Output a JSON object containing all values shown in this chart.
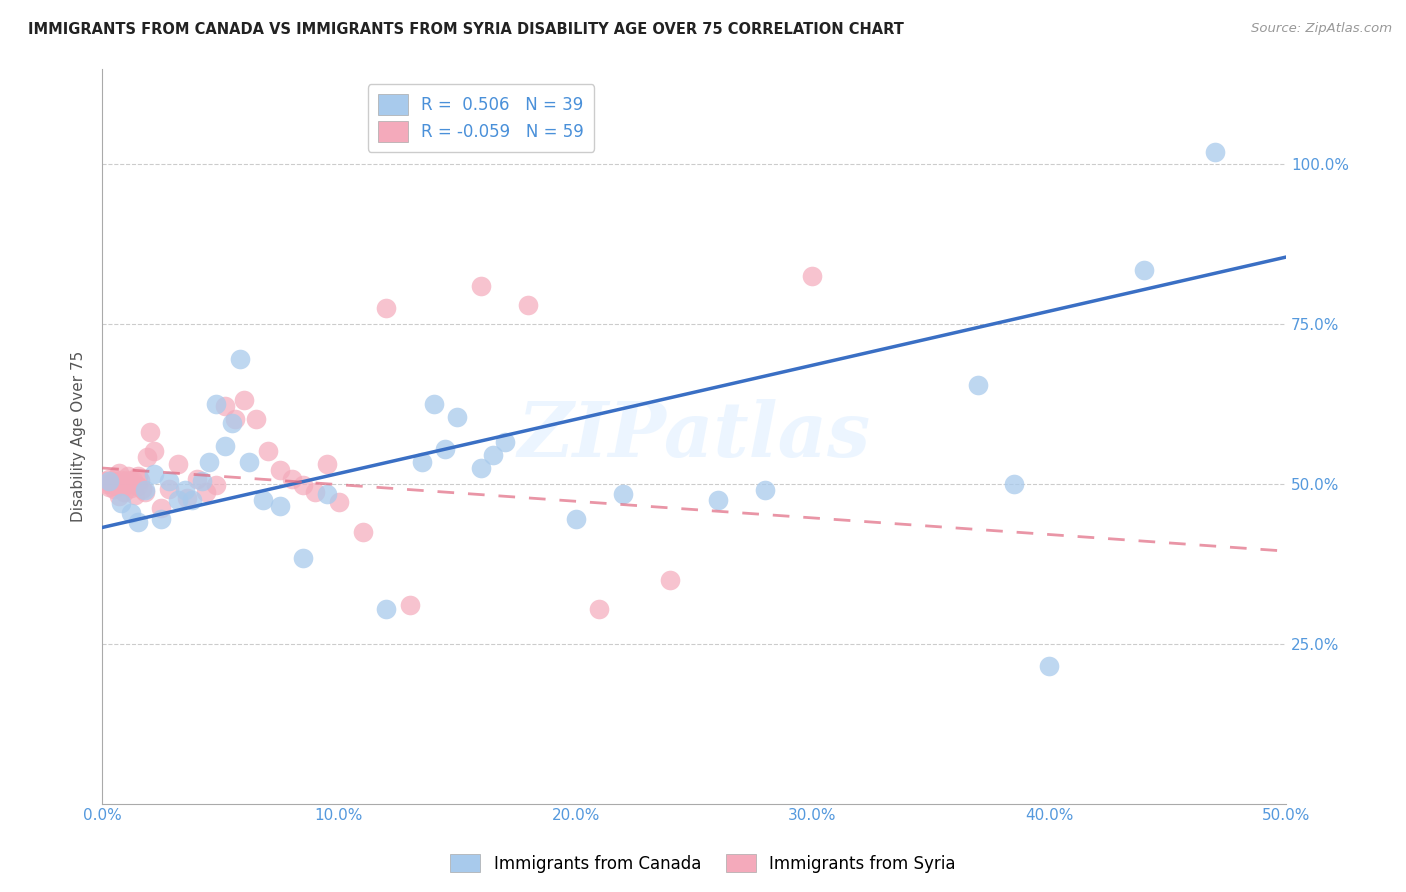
{
  "title": "IMMIGRANTS FROM CANADA VS IMMIGRANTS FROM SYRIA DISABILITY AGE OVER 75 CORRELATION CHART",
  "source": "Source: ZipAtlas.com",
  "ylabel": "Disability Age Over 75",
  "legend_label_blue": "Immigrants from Canada",
  "legend_label_pink": "Immigrants from Syria",
  "r_blue": 0.506,
  "n_blue": 39,
  "r_pink": -0.059,
  "n_pink": 59,
  "color_blue": "#A8CAEC",
  "color_pink": "#F4AABB",
  "line_color_blue": "#3A6FC4",
  "line_color_pink": "#E06880",
  "xlim": [
    0.0,
    0.5
  ],
  "ylim": [
    0.0,
    1.15
  ],
  "xtick_labels": [
    "0.0%",
    "10.0%",
    "20.0%",
    "30.0%",
    "40.0%",
    "50.0%"
  ],
  "xtick_values": [
    0.0,
    0.1,
    0.2,
    0.3,
    0.4,
    0.5
  ],
  "ytick_labels": [
    "25.0%",
    "50.0%",
    "75.0%",
    "100.0%"
  ],
  "ytick_values": [
    0.25,
    0.5,
    0.75,
    1.0
  ],
  "canada_x": [
    0.003,
    0.008,
    0.012,
    0.015,
    0.018,
    0.022,
    0.025,
    0.028,
    0.032,
    0.035,
    0.038,
    0.042,
    0.045,
    0.048,
    0.052,
    0.055,
    0.058,
    0.062,
    0.068,
    0.075,
    0.085,
    0.095,
    0.12,
    0.135,
    0.14,
    0.145,
    0.15,
    0.16,
    0.165,
    0.17,
    0.2,
    0.22,
    0.26,
    0.28,
    0.37,
    0.385,
    0.4,
    0.44,
    0.47
  ],
  "canada_y": [
    0.505,
    0.47,
    0.455,
    0.44,
    0.49,
    0.515,
    0.445,
    0.505,
    0.475,
    0.49,
    0.475,
    0.505,
    0.535,
    0.625,
    0.56,
    0.595,
    0.695,
    0.535,
    0.475,
    0.465,
    0.385,
    0.485,
    0.305,
    0.535,
    0.625,
    0.555,
    0.605,
    0.525,
    0.545,
    0.565,
    0.445,
    0.485,
    0.475,
    0.49,
    0.655,
    0.5,
    0.215,
    0.835,
    1.02
  ],
  "syria_x": [
    0.001,
    0.002,
    0.003,
    0.003,
    0.004,
    0.004,
    0.005,
    0.005,
    0.006,
    0.006,
    0.007,
    0.007,
    0.008,
    0.008,
    0.009,
    0.009,
    0.01,
    0.01,
    0.011,
    0.011,
    0.012,
    0.012,
    0.013,
    0.013,
    0.014,
    0.015,
    0.015,
    0.016,
    0.017,
    0.018,
    0.019,
    0.02,
    0.022,
    0.025,
    0.028,
    0.032,
    0.036,
    0.04,
    0.044,
    0.048,
    0.052,
    0.056,
    0.06,
    0.065,
    0.07,
    0.075,
    0.08,
    0.085,
    0.09,
    0.095,
    0.1,
    0.11,
    0.12,
    0.13,
    0.16,
    0.18,
    0.21,
    0.24,
    0.3
  ],
  "syria_y": [
    0.505,
    0.5,
    0.495,
    0.508,
    0.5,
    0.502,
    0.492,
    0.508,
    0.497,
    0.503,
    0.482,
    0.518,
    0.497,
    0.507,
    0.487,
    0.503,
    0.502,
    0.498,
    0.512,
    0.507,
    0.503,
    0.493,
    0.507,
    0.502,
    0.483,
    0.512,
    0.497,
    0.507,
    0.492,
    0.488,
    0.542,
    0.582,
    0.552,
    0.462,
    0.492,
    0.532,
    0.478,
    0.508,
    0.488,
    0.498,
    0.622,
    0.602,
    0.632,
    0.602,
    0.552,
    0.522,
    0.508,
    0.498,
    0.488,
    0.532,
    0.472,
    0.425,
    0.775,
    0.31,
    0.81,
    0.78,
    0.305,
    0.35,
    0.825
  ],
  "blue_trend_x": [
    0.0,
    0.5
  ],
  "blue_trend_y": [
    0.432,
    0.855
  ],
  "pink_trend_x": [
    0.0,
    0.5
  ],
  "pink_trend_y": [
    0.525,
    0.395
  ]
}
